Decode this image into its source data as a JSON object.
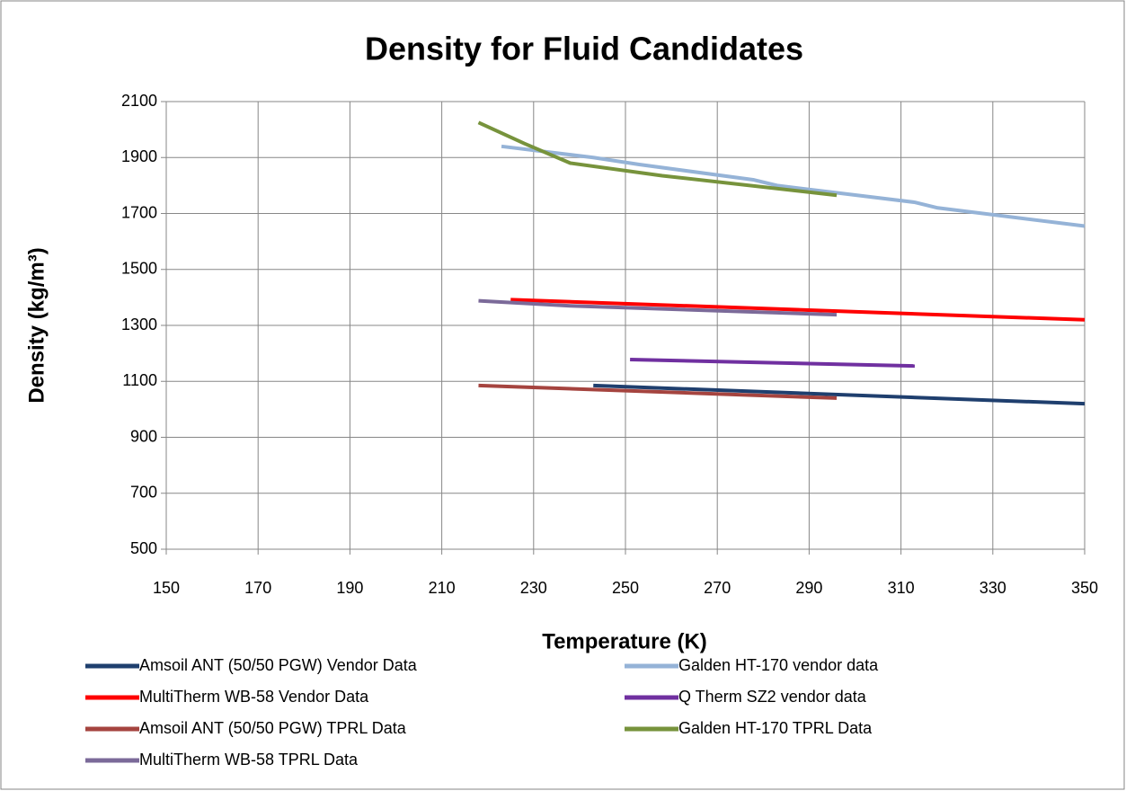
{
  "chart_data": {
    "type": "line",
    "title": "Density for Fluid Candidates",
    "xlabel": "Temperature (K)",
    "ylabel": "Density (kg/m³)",
    "xlim": [
      150,
      350
    ],
    "xticks": [
      150,
      170,
      190,
      210,
      230,
      250,
      270,
      290,
      310,
      330,
      350
    ],
    "ylim": [
      500,
      2100
    ],
    "yticks": [
      500,
      700,
      900,
      1100,
      1300,
      1500,
      1700,
      1900,
      2100
    ],
    "grid": true,
    "legend": "bottom",
    "series": [
      {
        "name": "Amsoil ANT (50/50 PGW) Vendor Data",
        "color": "#1f3f6e",
        "x": [
          243,
          350
        ],
        "values": [
          1085,
          1020
        ]
      },
      {
        "name": "Galden HT-170 vendor data",
        "color": "#95b3d7",
        "x": [
          223,
          243,
          253,
          278,
          283,
          313,
          318,
          350
        ],
        "values": [
          1940,
          1900,
          1875,
          1820,
          1800,
          1740,
          1720,
          1655
        ]
      },
      {
        "name": "MultiTherm WB-58 Vendor Data",
        "color": "#ff0000",
        "x": [
          225,
          350
        ],
        "values": [
          1392,
          1320
        ]
      },
      {
        "name": "Q Therm SZ2 vendor data",
        "color": "#7030a0",
        "x": [
          251,
          313
        ],
        "values": [
          1178,
          1155
        ]
      },
      {
        "name": "Amsoil ANT (50/50 PGW) TPRL Data",
        "color": "#a5443f",
        "x": [
          218,
          296
        ],
        "values": [
          1085,
          1040
        ]
      },
      {
        "name": "Galden HT-170 TPRL Data",
        "color": "#77933c",
        "x": [
          218,
          228,
          238,
          258,
          296
        ],
        "values": [
          2025,
          1950,
          1880,
          1835,
          1765
        ]
      },
      {
        "name": "MultiTherm WB-58 TPRL Data",
        "color": "#7b6a99",
        "x": [
          218,
          238,
          296
        ],
        "values": [
          1388,
          1370,
          1338
        ]
      }
    ]
  }
}
